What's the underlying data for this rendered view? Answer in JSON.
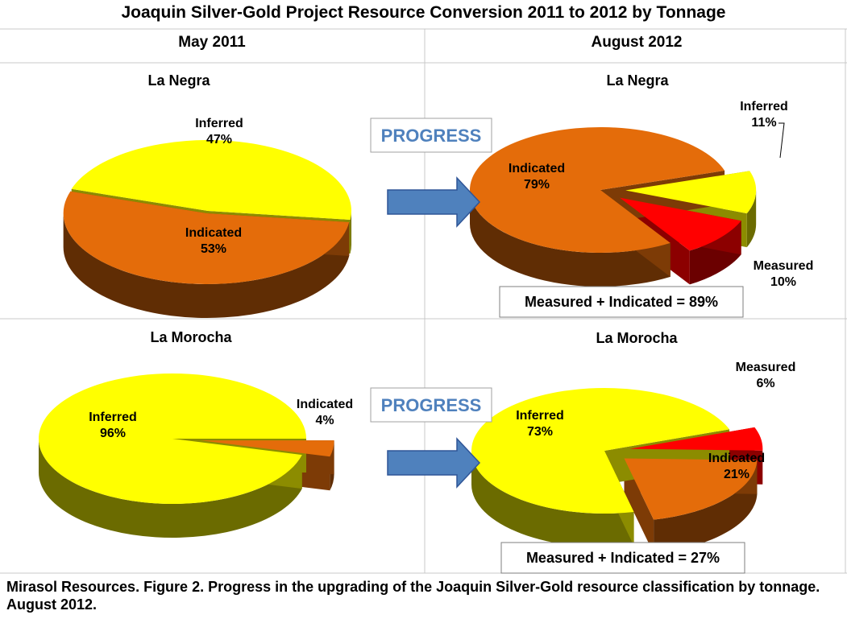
{
  "title": "Joaquin Silver-Gold Project Resource Conversion 2011 to 2012 by Tonnage",
  "columns": {
    "left": "May 2011",
    "right": "August 2012"
  },
  "progress_label": "PROGRESS",
  "caption": "Mirasol Resources. Figure 2. Progress in the upgrading of the Joaquin Silver-Gold resource classification by tonnage. August 2012.",
  "colors": {
    "Inferred": "#ffff00",
    "Indicated": "#e46c0a",
    "Measured": "#ff0000",
    "arrow": "#4f81bd",
    "progress_text": "#4f81bd"
  },
  "chart_data": [
    {
      "type": "pie",
      "title": "La Negra",
      "period": "May 2011",
      "categories": [
        "Inferred",
        "Indicated"
      ],
      "values": [
        47,
        53
      ],
      "summary": ""
    },
    {
      "type": "pie",
      "title": "La Negra",
      "period": "August 2012",
      "categories": [
        "Inferred",
        "Measured",
        "Indicated"
      ],
      "values": [
        11,
        10,
        79
      ],
      "summary": "Measured + Indicated = 89%"
    },
    {
      "type": "pie",
      "title": "La Morocha",
      "period": "May 2011",
      "categories": [
        "Indicated",
        "Inferred"
      ],
      "values": [
        4,
        96
      ],
      "summary": ""
    },
    {
      "type": "pie",
      "title": "La Morocha",
      "period": "August 2012",
      "categories": [
        "Measured",
        "Indicated",
        "Inferred"
      ],
      "values": [
        6,
        21,
        73
      ],
      "summary": "Measured + Indicated = 27%"
    }
  ]
}
